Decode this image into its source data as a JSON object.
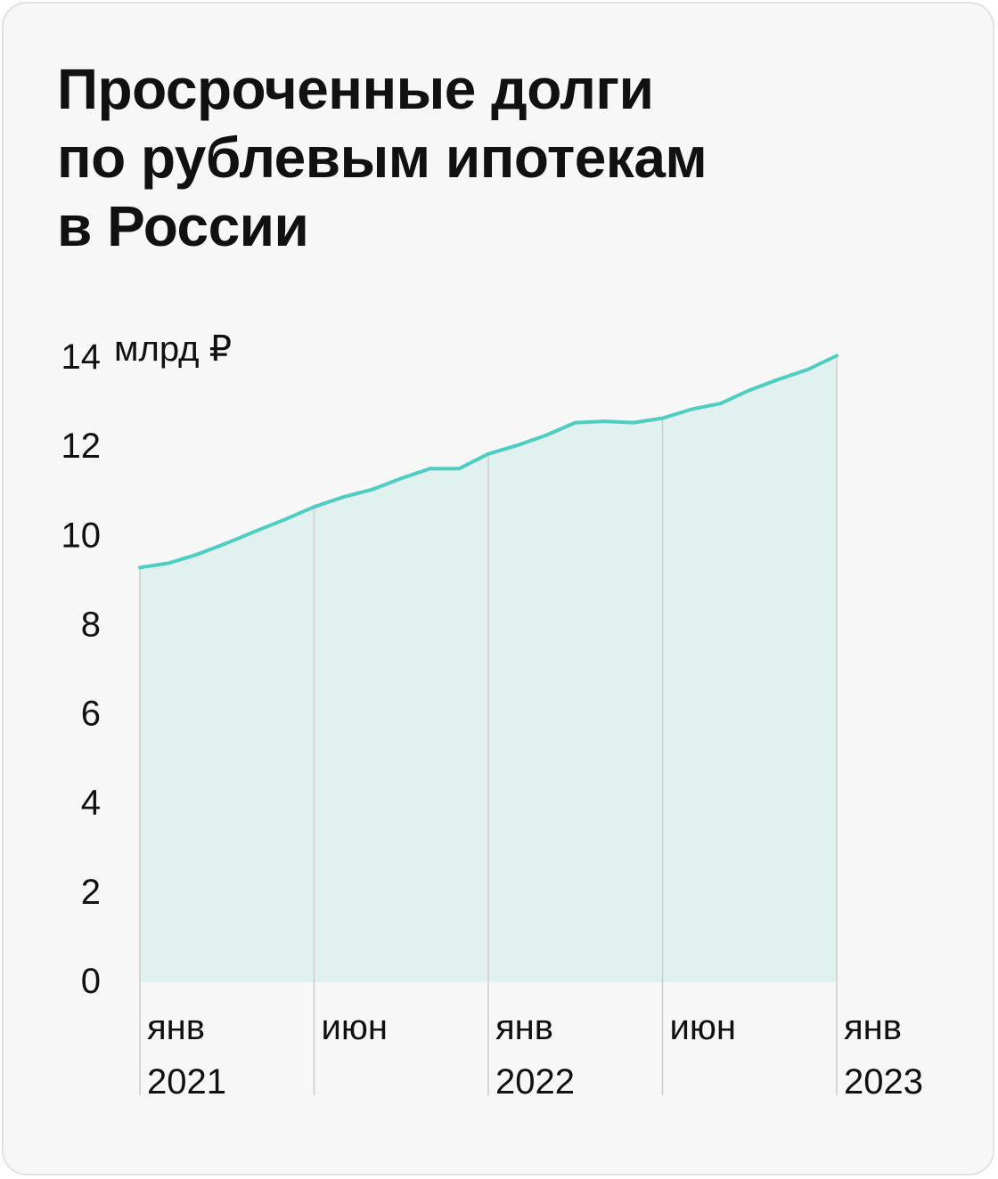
{
  "title_lines": [
    "Просроченные долги",
    "по рублевым ипотекам",
    "в России"
  ],
  "colors": {
    "line": "#4ecdc0",
    "area": "#e0f1f0",
    "grid": "#cccccc",
    "text": "#111111"
  },
  "chart_data": {
    "type": "area",
    "title": "Просроченные долги по рублевым ипотекам в России",
    "unit_label": "млрд ₽",
    "ylim": [
      0,
      14
    ],
    "y_ticks": [
      "0",
      "2",
      "4",
      "6",
      "8",
      "10",
      "12",
      "14"
    ],
    "x_ticks": [
      {
        "month": "янв",
        "year": "2021",
        "x": 0
      },
      {
        "month": "июн",
        "year": "",
        "x": 6
      },
      {
        "month": "янв",
        "year": "2022",
        "x": 12
      },
      {
        "month": "июн",
        "year": "",
        "x": 18
      },
      {
        "month": "янв",
        "year": "2023",
        "x": 24
      }
    ],
    "series": [
      {
        "values": [
          9.3,
          9.4,
          9.6,
          9.85,
          10.12,
          10.38,
          10.66,
          10.88,
          11.05,
          11.3,
          11.52,
          11.52,
          11.85,
          12.04,
          12.27,
          12.55,
          12.58,
          12.55,
          12.65,
          12.85,
          12.98,
          13.28,
          13.52,
          13.74,
          14.05
        ]
      }
    ]
  }
}
